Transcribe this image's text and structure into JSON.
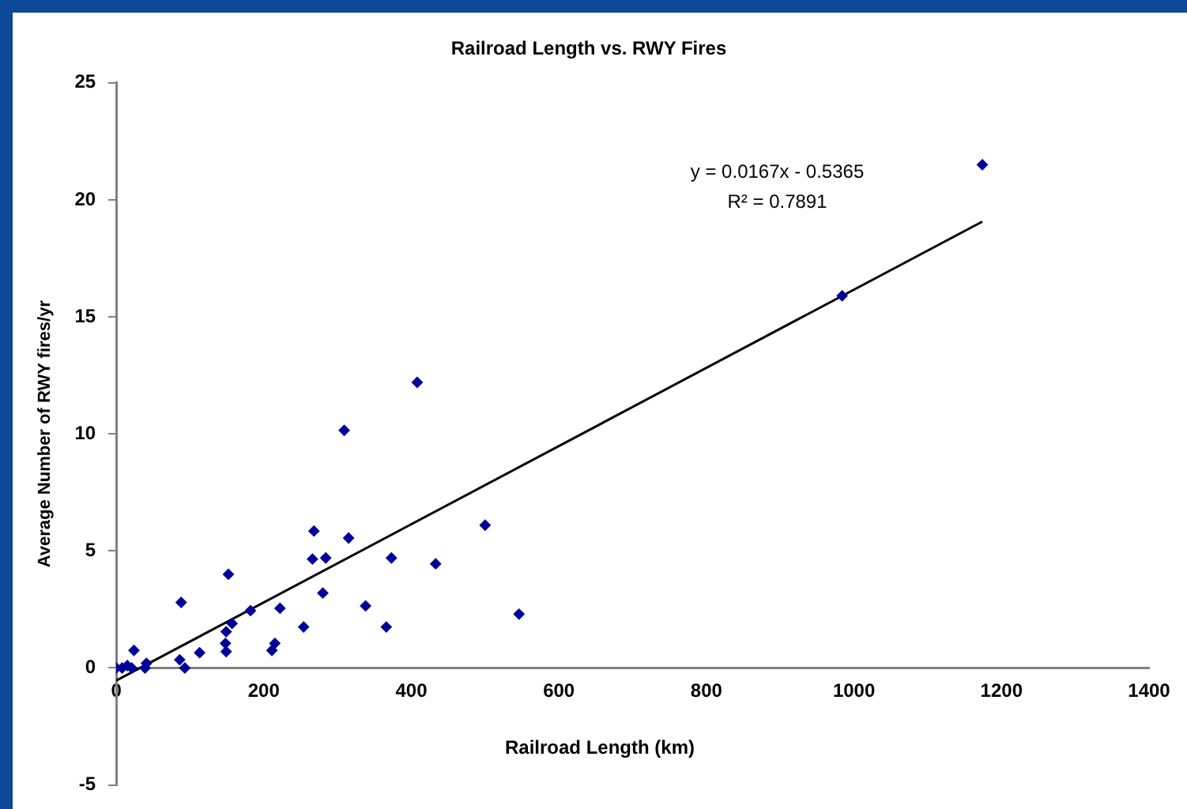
{
  "chart_data": {
    "type": "scatter",
    "title": "Railroad Length vs. RWY Fires",
    "xlabel": "Railroad Length (km)",
    "ylabel": "Average Number of RWY fires/yr",
    "annotations": [
      "y = 0.0167x - 0.5365",
      "R² = 0.7891"
    ],
    "xlim": [
      0,
      1400
    ],
    "xticks": [
      0,
      200,
      400,
      600,
      800,
      1000,
      1200,
      1400
    ],
    "ylim": [
      -5,
      25
    ],
    "yticks": [
      -5,
      0,
      5,
      10,
      15,
      20,
      25
    ],
    "grid": false,
    "legend": false,
    "marker": "diamond",
    "series": [
      {
        "type": "scatter",
        "color": "#000099",
        "x": [
          0,
          8,
          15,
          21,
          24,
          39,
          41,
          86,
          88,
          93,
          113,
          148,
          149,
          149,
          152,
          157,
          182,
          211,
          215,
          222,
          254,
          266,
          268,
          280,
          284,
          309,
          315,
          338,
          366,
          373,
          408,
          433,
          500,
          546,
          984,
          1174
        ],
        "values": [
          0,
          0,
          0.1,
          0,
          0.75,
          0,
          0.2,
          0.35,
          2.8,
          0,
          0.65,
          1.05,
          1.55,
          0.7,
          4.0,
          1.9,
          2.45,
          0.75,
          1.05,
          2.55,
          1.75,
          4.65,
          5.85,
          3.2,
          4.7,
          10.15,
          5.55,
          2.65,
          1.75,
          4.7,
          12.2,
          4.45,
          6.1,
          2.3,
          15.9,
          21.5
        ]
      },
      {
        "type": "line",
        "color": "#000000",
        "marker": "none",
        "x": [
          0,
          1174
        ],
        "values": [
          -0.54,
          19.07
        ]
      }
    ]
  }
}
